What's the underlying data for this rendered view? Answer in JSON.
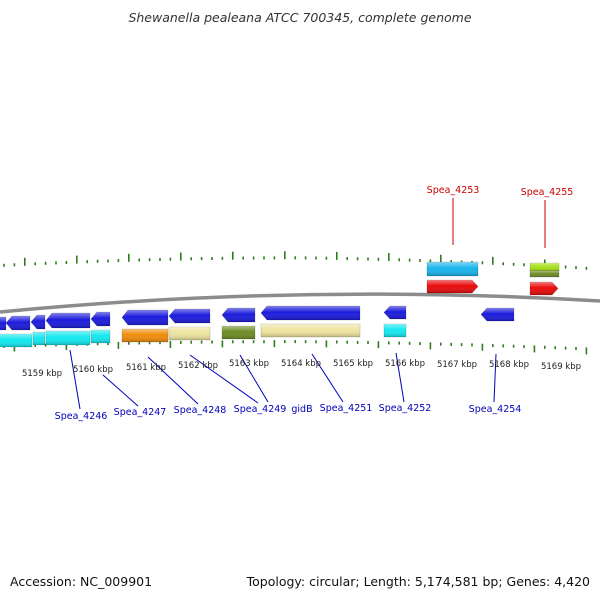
{
  "title": "Shewanella pealeana ATCC 700345, complete genome",
  "footer": {
    "accession": "Accession: NC_009901",
    "summary": "Topology: circular; Length: 5,174,581 bp; Genes: 4,420"
  },
  "colors": {
    "backbone": "#8c8c8c",
    "tick": "#2e7d1e",
    "forward_label": "#cc0000",
    "reverse_label": "#0000bb",
    "blue_cds": "#1c1cdc",
    "red_cds": "#e80c0c",
    "cyan_cds": "#14e8f0",
    "skyblue_cds": "#18b4ec",
    "orange_cds": "#f08c0c",
    "khaki_cds": "#eee4a0",
    "olive_cds": "#6e8c26",
    "lime_cds": "#a8e01c"
  },
  "scale": {
    "labels": [
      "5159 kbp",
      "5160 kbp",
      "5161 kbp",
      "5162 kbp",
      "5163 kbp",
      "5164 kbp",
      "5165 kbp",
      "5166 kbp",
      "5167 kbp",
      "5168 kbp",
      "5169 kbp"
    ]
  },
  "genes": {
    "forward": [
      {
        "name": "Spea_4253"
      },
      {
        "name": "Spea_4255"
      }
    ],
    "reverse": [
      {
        "name": "Spea_4246"
      },
      {
        "name": "Spea_4247"
      },
      {
        "name": "Spea_4248"
      },
      {
        "name": "Spea_4249"
      },
      {
        "name": "gidB"
      },
      {
        "name": "Spea_4251"
      },
      {
        "name": "Spea_4252"
      },
      {
        "name": "Spea_4254"
      }
    ]
  }
}
